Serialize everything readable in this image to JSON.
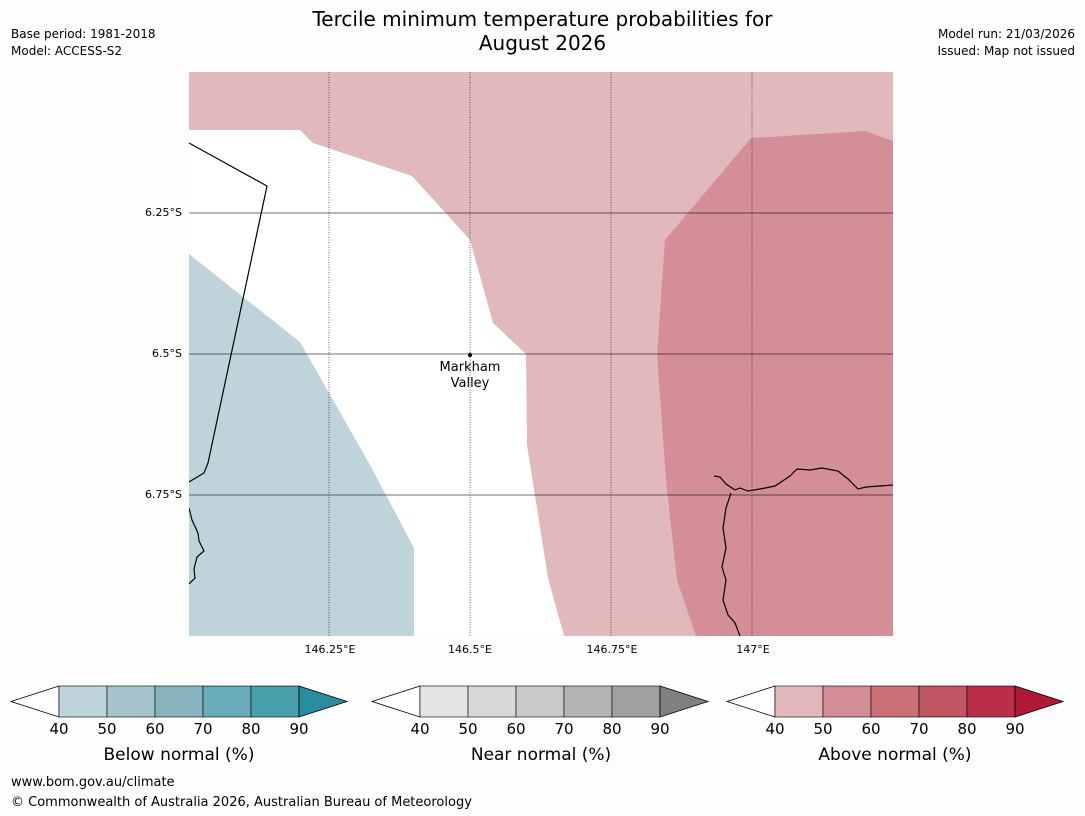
{
  "title_line1": "Tercile minimum temperature probabilities for",
  "title_line2": "August 2026",
  "meta_left": {
    "base_period": "Base period: 1981-2018",
    "model": "Model: ACCESS-S2"
  },
  "meta_right": {
    "model_run": "Model run: 21/03/2026",
    "issued": "Issued: Map not issued"
  },
  "map": {
    "latitude_labels": [
      "6.25°S",
      "6.5°S",
      "6.75°S"
    ],
    "longitude_labels": [
      "146.25°E",
      "146.5°E",
      "146.75°E",
      "147°E"
    ],
    "place": {
      "name_line1": "Markham",
      "name_line2": "Valley"
    }
  },
  "legends": [
    {
      "title": "Below normal (%)",
      "ticks": [
        "40",
        "50",
        "60",
        "70",
        "80",
        "90"
      ],
      "colors": [
        "#bfd4da",
        "#a6c4cb",
        "#87b4bf",
        "#6aabb8",
        "#48a0ad",
        "#2a8d9f"
      ]
    },
    {
      "title": "Near normal (%)",
      "ticks": [
        "40",
        "50",
        "60",
        "70",
        "80",
        "90"
      ],
      "colors": [
        "#e4e4e4",
        "#d8d8d8",
        "#c9c9c9",
        "#b4b4b4",
        "#a0a0a0",
        "#808080"
      ]
    },
    {
      "title": "Above normal (%)",
      "ticks": [
        "40",
        "50",
        "60",
        "70",
        "80",
        "90"
      ],
      "colors": [
        "#e1b9bd",
        "#d48f96",
        "#c97177",
        "#c05563",
        "#bb2e49",
        "#b01a36"
      ]
    }
  ],
  "footer": {
    "url": "www.bom.gov.au/climate",
    "copyright": "© Commonwealth of Australia 2026, Australian Bureau of Meteorology"
  }
}
